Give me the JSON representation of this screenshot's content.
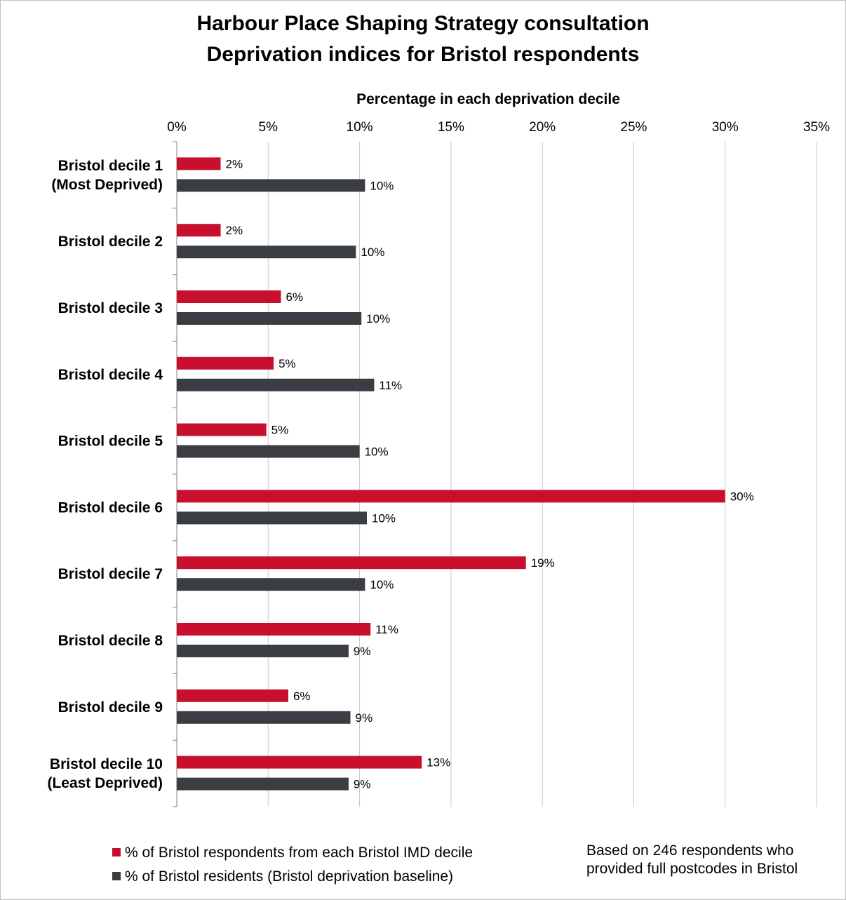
{
  "colors": {
    "respondents": "#c8102e",
    "baseline": "#3a3d42",
    "grid": "#c8c8c8",
    "axis": "#808080"
  },
  "chart_data": {
    "type": "bar",
    "orientation": "horizontal",
    "title": "Harbour Place Shaping Strategy consultation",
    "subtitle": "Deprivation  indices for Bristol respondents",
    "xlabel": "Percentage in each deprivation decile",
    "ylabel": "",
    "xlim": [
      0,
      35
    ],
    "xticks": [
      "0%",
      "5%",
      "10%",
      "15%",
      "20%",
      "25%",
      "30%",
      "35%"
    ],
    "grid": true,
    "legend_position": "bottom",
    "categories": [
      [
        "Bristol decile 1",
        "(Most Deprived)"
      ],
      [
        "Bristol decile 2"
      ],
      [
        "Bristol decile 3"
      ],
      [
        "Bristol decile 4"
      ],
      [
        "Bristol decile 5"
      ],
      [
        "Bristol decile 6"
      ],
      [
        "Bristol decile 7"
      ],
      [
        "Bristol decile 8"
      ],
      [
        "Bristol decile 9"
      ],
      [
        "Bristol decile 10",
        "(Least Deprived)"
      ]
    ],
    "series": [
      {
        "name": "% of Bristol respondents from each Bristol IMD decile",
        "values": [
          2.4,
          2.4,
          5.7,
          5.3,
          4.9,
          30.0,
          19.1,
          10.6,
          6.1,
          13.4
        ],
        "labels": [
          "2%",
          "2%",
          "6%",
          "5%",
          "5%",
          "30%",
          "19%",
          "11%",
          "6%",
          "13%"
        ]
      },
      {
        "name": "% of Bristol residents (Bristol deprivation baseline)",
        "values": [
          10.3,
          9.8,
          10.1,
          10.8,
          10.0,
          10.4,
          10.3,
          9.4,
          9.5,
          9.4
        ],
        "labels": [
          "10%",
          "10%",
          "10%",
          "11%",
          "10%",
          "10%",
          "10%",
          "9%",
          "9%",
          "9%"
        ]
      }
    ],
    "footnote": [
      "Based on 246 respondents who",
      "provided full postcodes in Bristol"
    ]
  }
}
